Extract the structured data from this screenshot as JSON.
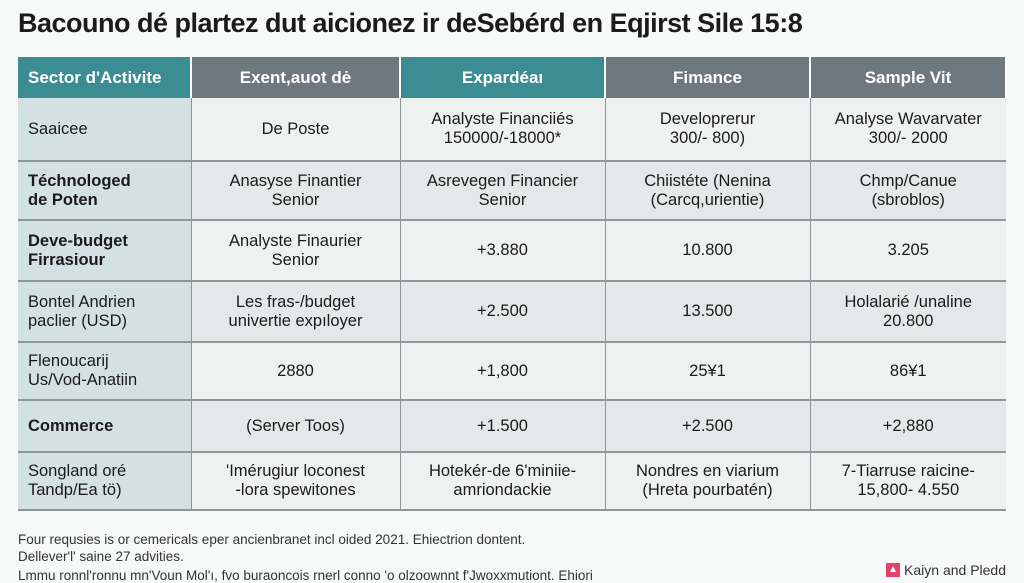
{
  "title": "Bacouno dé plartez dut aicionez ir deSebérd en Eqjirst Sile 15:8",
  "table": {
    "headers": [
      "Sector d'Activite",
      "Exent,auot dė",
      "Expardéaı",
      "Fimance",
      "Sample Vit"
    ],
    "header_colors": [
      "#3c8c94",
      "#6d797e",
      "#3c8c94",
      "#6d797e",
      "#6d797e"
    ],
    "rows": [
      [
        "Saaicee",
        "De Poste",
        "Analyste Financiiés\n150000/-18000*",
        "Developrerur\n300/- 800)",
        "Analyse Wavarvater\n300/- 2000"
      ],
      [
        "Téchnologed\nde Poten",
        "Anasyse Finantier\nSenior",
        "Asrevegen Financier\nSenior",
        "Chiistéte (Nenina\n(Carcq,urientie)",
        "Chmp/Canue\n(sbroblos)"
      ],
      [
        "Deve-budget\nFirrasiour",
        "Analyste Finaurier\nSenior",
        "+3.880",
        "10.800",
        "3.205"
      ],
      [
        "Bontel Andrien\npaclier (USD)",
        "Les fras-/budget\nunivertie expıloyer",
        "+2.500",
        "13.500",
        "Holalarié /unaline\n20.800"
      ],
      [
        "Flenoucarij\nUs/Vod-Anatiin",
        "2880",
        "+1,800",
        "25¥1",
        "86¥1"
      ],
      [
        "Commerce",
        "(Server Toos)",
        "+1.500",
        "+2.500",
        "+2,880"
      ],
      [
        "Songland oré\nTandp/Ea tö)",
        "'Imérugiur loconest\n-lora spewitones",
        "Hotekér-de 6'miniie-\namriondackie",
        "Nondres en viarium\n(Hreta pourbatén)",
        "7-Tiarruse raicine-\n15,800- 4.550"
      ]
    ],
    "bold_first_col_rows": [
      1,
      2,
      5
    ]
  },
  "footer": {
    "line1": "Four requsies is or cemericals eper ancienbranet incl oided 2021. Ehiectrion dontent.",
    "line2": "Dellever'l' saine 27 advities.",
    "line3": "Lmmu ronnl'ronnu mn'Voun Mol'ı, fvo buraoncois rnerl conno 'o olzoownnt f'Jwoxxmutiont. Ehiori"
  },
  "logo": {
    "text": "Kaiyn and Pledd",
    "icon": "logo-mark-icon"
  }
}
